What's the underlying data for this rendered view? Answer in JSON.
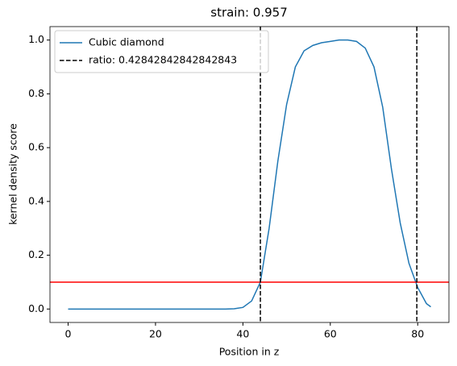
{
  "chart_data": {
    "type": "line",
    "title": "strain: 0.957",
    "x_label": "Position in z",
    "y_label": "kernel density score",
    "x": [
      0,
      10,
      20,
      30,
      36,
      38,
      40,
      42,
      44,
      46,
      48,
      50,
      52,
      54,
      56,
      58,
      60,
      62,
      64,
      66,
      68,
      70,
      72,
      74,
      76,
      78,
      80,
      82,
      83
    ],
    "series": [
      {
        "name": "Cubic diamond",
        "color": "#1f77b4",
        "values": [
          0,
          0,
          0,
          0,
          0,
          0.001,
          0.006,
          0.03,
          0.1,
          0.3,
          0.55,
          0.76,
          0.9,
          0.96,
          0.98,
          0.99,
          0.995,
          1.0,
          1.0,
          0.995,
          0.97,
          0.9,
          0.75,
          0.52,
          0.32,
          0.17,
          0.08,
          0.02,
          0.008
        ]
      }
    ],
    "vlines": {
      "name": "ratio: 0.42842842842842843",
      "color": "#000000",
      "values": [
        44,
        79.8
      ]
    },
    "hline": {
      "value": 0.1,
      "color": "#ff0000"
    },
    "xlim": [
      -4.15,
      87.15
    ],
    "xticks": [
      0,
      20,
      40,
      60,
      80
    ],
    "ylim": [
      -0.05,
      1.05
    ],
    "yticks": [
      {
        "value": 0,
        "label": "0.0"
      },
      {
        "value": 0.2,
        "label": "0.2"
      },
      {
        "value": 0.4,
        "label": "0.4"
      },
      {
        "value": 0.6,
        "label": "0.6"
      },
      {
        "value": 0.8,
        "label": "0.8"
      },
      {
        "value": 1,
        "label": "1.0"
      }
    ],
    "legend": "upper left"
  }
}
